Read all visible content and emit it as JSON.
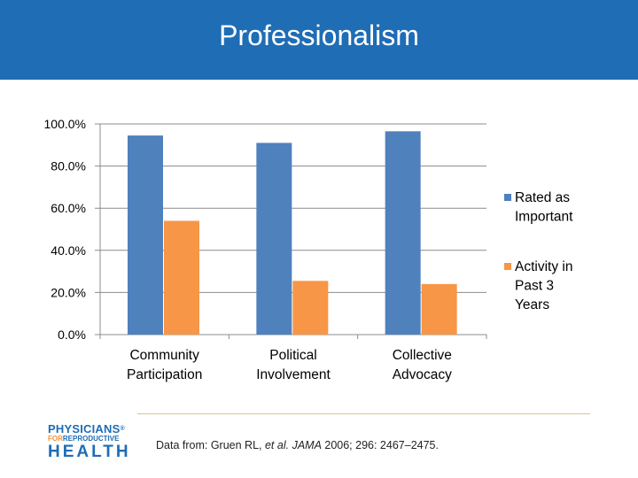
{
  "slide": {
    "title": "Professionalism",
    "source_prefix": "Data from: Gruen RL, ",
    "source_etal": "et al.",
    "source_journal": "JAMA",
    "source_suffix": " 2006; 296: 2467–2475."
  },
  "logo": {
    "line1": "PHYSICIANS",
    "reg": "®",
    "line2_for": "FOR",
    "line2_rest": "REPRODUCTIVE",
    "line3": "HEALTH"
  },
  "colors": {
    "title_bar": "#1f6db5",
    "series_important": "#4f81bd",
    "series_activity": "#f79646"
  },
  "chart_data": {
    "type": "bar",
    "title": "",
    "xlabel": "",
    "ylabel": "",
    "categories": [
      [
        "Community",
        "Participation"
      ],
      [
        "Political",
        "Involvement"
      ],
      [
        "Collective",
        "Advocacy"
      ]
    ],
    "series": [
      {
        "name": [
          "Rated as",
          "Important"
        ],
        "color": "#4f81bd",
        "values": [
          94.5,
          91.0,
          96.5
        ]
      },
      {
        "name": [
          "Activity in",
          "Past 3",
          "Years"
        ],
        "color": "#f79646",
        "values": [
          54.0,
          25.5,
          24.0
        ]
      }
    ],
    "ylim": [
      0,
      100
    ],
    "yticks": [
      0,
      20,
      40,
      60,
      80,
      100
    ],
    "ytick_labels": [
      "0.0%",
      "20.0%",
      "40.0%",
      "60.0%",
      "80.0%",
      "100.0%"
    ],
    "grid": true,
    "legend": "right"
  }
}
